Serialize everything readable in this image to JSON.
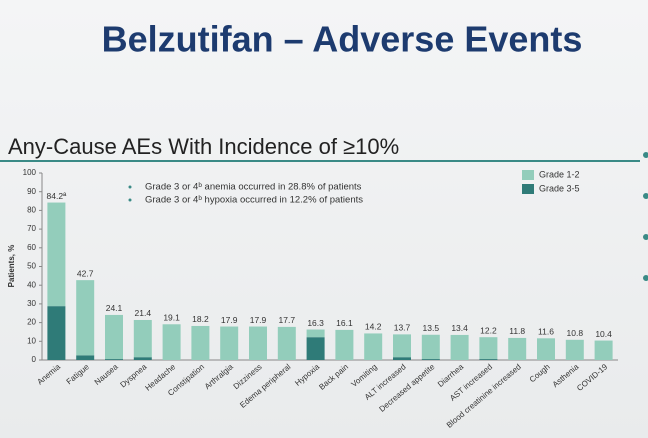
{
  "chart_data": {
    "type": "stacked_bar",
    "title": "Belzutifan – Adverse Events",
    "subtitle": "Any-Cause AEs With Incidence of ≥10%",
    "ylabel": "Patients, %",
    "annotations": [
      "Grade 3 or 4ᵇ anemia occurred in 28.8% of patients",
      "Grade 3 or 4ᵇ hypoxia occurred in 12.2% of patients"
    ],
    "categories": [
      "Anemia",
      "Fatigue",
      "Nausea",
      "Dyspnea",
      "Headache",
      "Constipation",
      "Arthralgia",
      "Dizziness",
      "Edema peripheral",
      "Hypoxia",
      "Back pain",
      "Vomiting",
      "ALT increased",
      "Decreased appetite",
      "Diarrhea",
      "AST increased",
      "Blood creatinine increased",
      "Cough",
      "Asthenia",
      "COVID-19"
    ],
    "series": [
      {
        "name": "Grade 3-5",
        "color": "#2f7b78",
        "values": [
          28.8,
          2.5,
          0.5,
          1.5,
          0,
          0,
          0,
          0,
          0,
          12.2,
          0,
          0,
          1.5,
          0.5,
          0,
          0.5,
          0,
          0,
          0,
          0
        ]
      },
      {
        "name": "Grade 1-2",
        "color": "#93cdbb",
        "values": [
          55.4,
          40.2,
          23.6,
          19.9,
          19.1,
          18.2,
          17.9,
          17.9,
          17.7,
          4.1,
          16.1,
          14.2,
          12.2,
          13.0,
          13.4,
          11.7,
          11.8,
          11.6,
          10.8,
          10.4
        ]
      }
    ],
    "totals": [
      84.2,
      42.7,
      24.1,
      21.4,
      19.1,
      18.2,
      17.9,
      17.9,
      17.7,
      16.3,
      16.1,
      14.2,
      13.7,
      13.5,
      13.4,
      12.2,
      11.8,
      11.6,
      10.8,
      10.4
    ],
    "total_labels": [
      "84.2ª",
      "42.7",
      "24.1",
      "21.4",
      "19.1",
      "18.2",
      "17.9",
      "17.9",
      "17.7",
      "16.3",
      "16.1",
      "14.2",
      "13.7",
      "13.5",
      "13.4",
      "12.2",
      "11.8",
      "11.6",
      "10.8",
      "10.4"
    ],
    "ylim": [
      0,
      100
    ],
    "yticks": [
      0,
      10,
      20,
      30,
      40,
      50,
      60,
      70,
      80,
      90,
      100
    ],
    "grid": false
  }
}
